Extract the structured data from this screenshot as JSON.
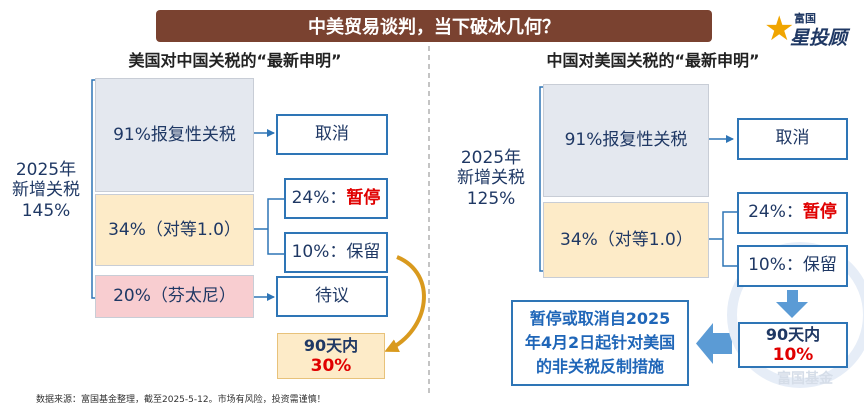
{
  "title": "中美贸易谈判，当下破冰几何？",
  "brand": {
    "top": "富国",
    "main": "星投顾"
  },
  "watermark": "富国基金",
  "left": {
    "subtitle": "美国对中国关税的“最新申明”",
    "total": {
      "line1": "2025年",
      "line2": "新增关税",
      "line3": "145%"
    },
    "items": [
      {
        "label": "91%报复性关税",
        "outcome": "取消"
      },
      {
        "label": "34%（对等1.0）",
        "outcomes": [
          {
            "prefix": "24%：",
            "status": "暂停"
          },
          {
            "prefix": "10%：",
            "status": "保留"
          }
        ]
      },
      {
        "label": "20%（芬太尼）",
        "outcome": "待议"
      }
    ],
    "note": {
      "line1": "90天内",
      "line2": "30%"
    }
  },
  "right": {
    "subtitle": "中国对美国关税的“最新申明”",
    "total": {
      "line1": "2025年",
      "line2": "新增关税",
      "line3": "125%"
    },
    "items": [
      {
        "label": "91%报复性关税",
        "outcome": "取消"
      },
      {
        "label": "34%（对等1.0）",
        "outcomes": [
          {
            "prefix": "24%：",
            "status": "暂停"
          },
          {
            "prefix": "10%：",
            "status": "保留"
          }
        ]
      }
    ],
    "note": {
      "line1": "90天内",
      "line2": "10%"
    },
    "measure": "暂停或取消自2025年4月2日起针对美国的非关税反制措施"
  },
  "footer": "数据来源：富国基金整理，截至2025-5-12。市场有风险，投资需谨慎！",
  "colors": {
    "title_bg": "#7a4230",
    "blue": "#2e75b6",
    "red": "#e00000",
    "gray_fill": "#e4e8ef",
    "orange_fill": "#fdebc8",
    "pink_fill": "#f8cdd0",
    "gold": "#d99a1e"
  }
}
